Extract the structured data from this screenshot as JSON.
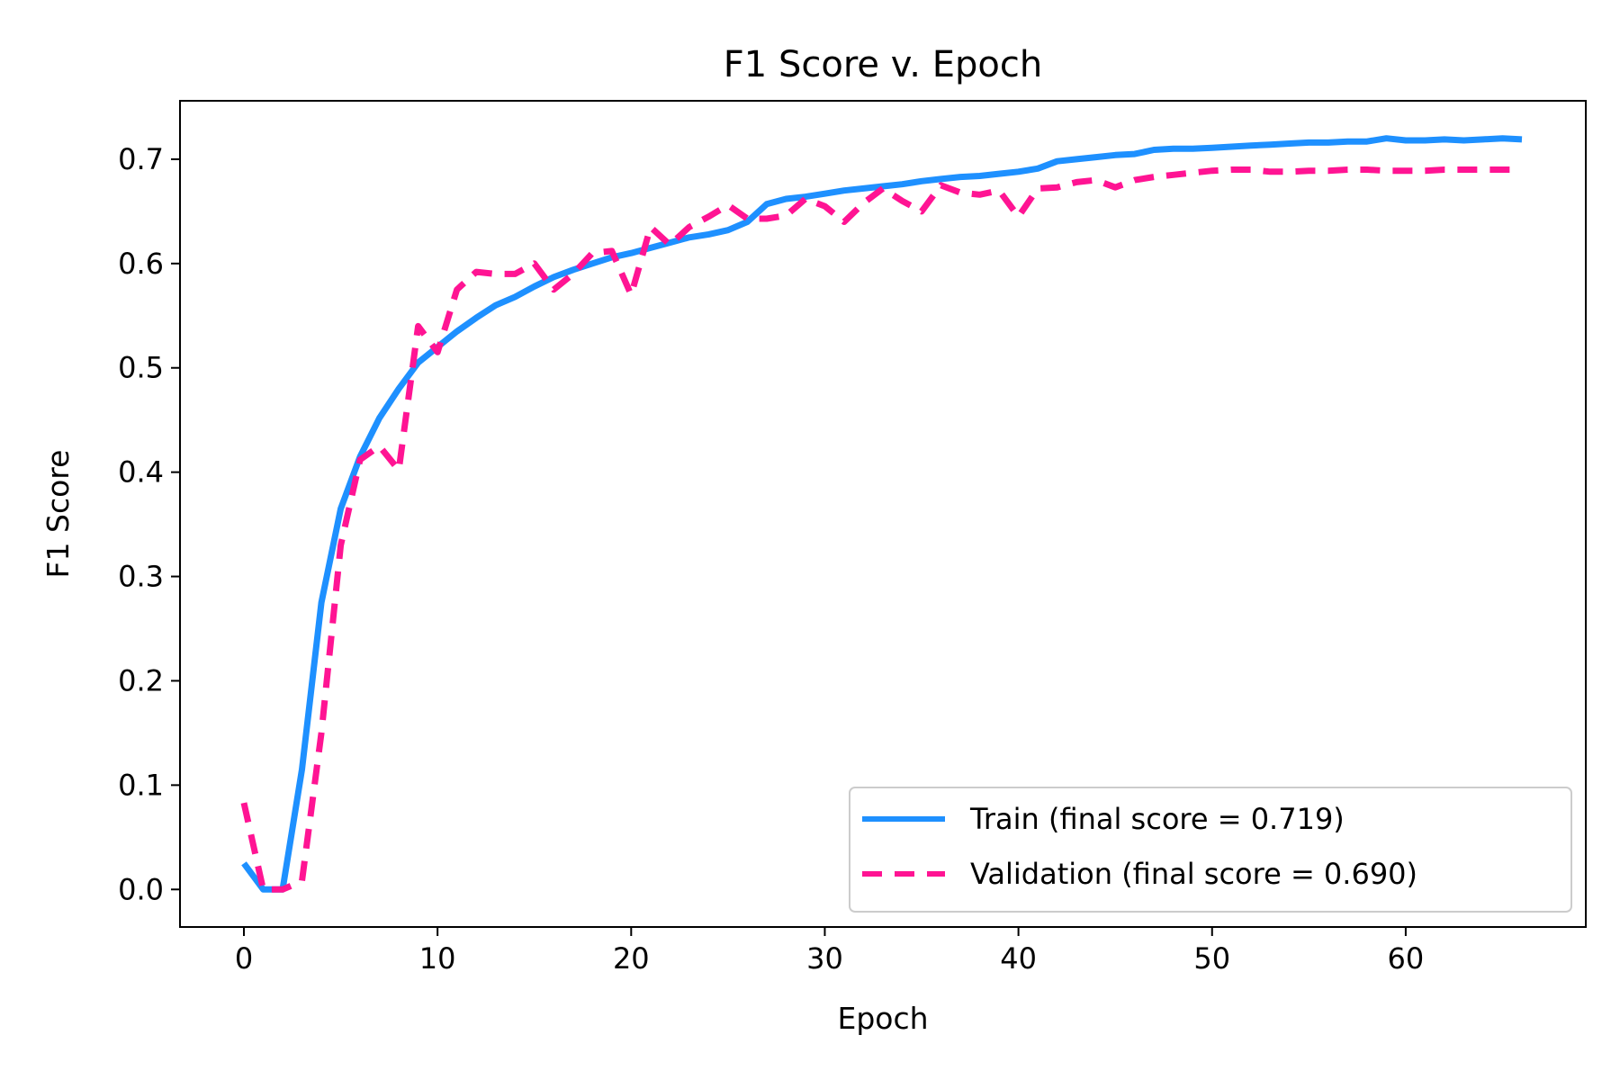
{
  "chart_data": {
    "type": "line",
    "title": "F1 Score v. Epoch",
    "xlabel": "Epoch",
    "ylabel": "F1 Score",
    "xlim": [
      -3.3,
      69.3
    ],
    "ylim": [
      -0.036,
      0.756
    ],
    "xticks": [
      0,
      10,
      20,
      30,
      40,
      50,
      60
    ],
    "yticks": [
      0.0,
      0.1,
      0.2,
      0.3,
      0.4,
      0.5,
      0.6,
      0.7
    ],
    "ytick_labels": [
      "0.0",
      "0.1",
      "0.2",
      "0.3",
      "0.4",
      "0.5",
      "0.6",
      "0.7"
    ],
    "grid": false,
    "legend_position": "lower-right",
    "x": [
      0,
      1,
      2,
      3,
      4,
      5,
      6,
      7,
      8,
      9,
      10,
      11,
      12,
      13,
      14,
      15,
      16,
      17,
      18,
      19,
      20,
      21,
      22,
      23,
      24,
      25,
      26,
      27,
      28,
      29,
      30,
      31,
      32,
      33,
      34,
      35,
      36,
      37,
      38,
      39,
      40,
      41,
      42,
      43,
      44,
      45,
      46,
      47,
      48,
      49,
      50,
      51,
      52,
      53,
      54,
      55,
      56,
      57,
      58,
      59,
      60,
      61,
      62,
      63,
      64,
      65,
      66
    ],
    "series": [
      {
        "name": "Train (final score = 0.719)",
        "color": "#1E90FF",
        "style": "solid",
        "values": [
          0.025,
          0.0,
          0.0,
          0.115,
          0.275,
          0.365,
          0.415,
          0.452,
          0.48,
          0.505,
          0.52,
          0.535,
          0.548,
          0.56,
          0.568,
          0.578,
          0.587,
          0.594,
          0.6,
          0.606,
          0.61,
          0.615,
          0.62,
          0.625,
          0.628,
          0.632,
          0.64,
          0.657,
          0.662,
          0.664,
          0.667,
          0.67,
          0.672,
          0.674,
          0.676,
          0.679,
          0.681,
          0.683,
          0.684,
          0.686,
          0.688,
          0.691,
          0.698,
          0.7,
          0.702,
          0.704,
          0.705,
          0.709,
          0.71,
          0.71,
          0.711,
          0.712,
          0.713,
          0.714,
          0.715,
          0.716,
          0.716,
          0.717,
          0.717,
          0.72,
          0.718,
          0.718,
          0.719,
          0.718,
          0.719,
          0.72,
          0.719
        ]
      },
      {
        "name": "Validation (final score = 0.690)",
        "color": "#FF1493",
        "style": "dashed",
        "values": [
          0.083,
          0.0,
          0.0,
          0.008,
          0.15,
          0.33,
          0.412,
          0.425,
          0.402,
          0.54,
          0.515,
          0.575,
          0.592,
          0.59,
          0.59,
          0.6,
          0.575,
          0.59,
          0.61,
          0.612,
          0.57,
          0.635,
          0.618,
          0.635,
          0.645,
          0.656,
          0.643,
          0.643,
          0.646,
          0.662,
          0.655,
          0.64,
          0.658,
          0.672,
          0.66,
          0.65,
          0.675,
          0.668,
          0.666,
          0.67,
          0.645,
          0.672,
          0.673,
          0.678,
          0.68,
          0.673,
          0.68,
          0.683,
          0.685,
          0.687,
          0.689,
          0.69,
          0.69,
          0.688,
          0.688,
          0.689,
          0.689,
          0.69,
          0.69,
          0.689,
          0.689,
          0.689,
          0.69,
          0.69,
          0.69,
          0.69,
          0.69
        ]
      }
    ]
  }
}
